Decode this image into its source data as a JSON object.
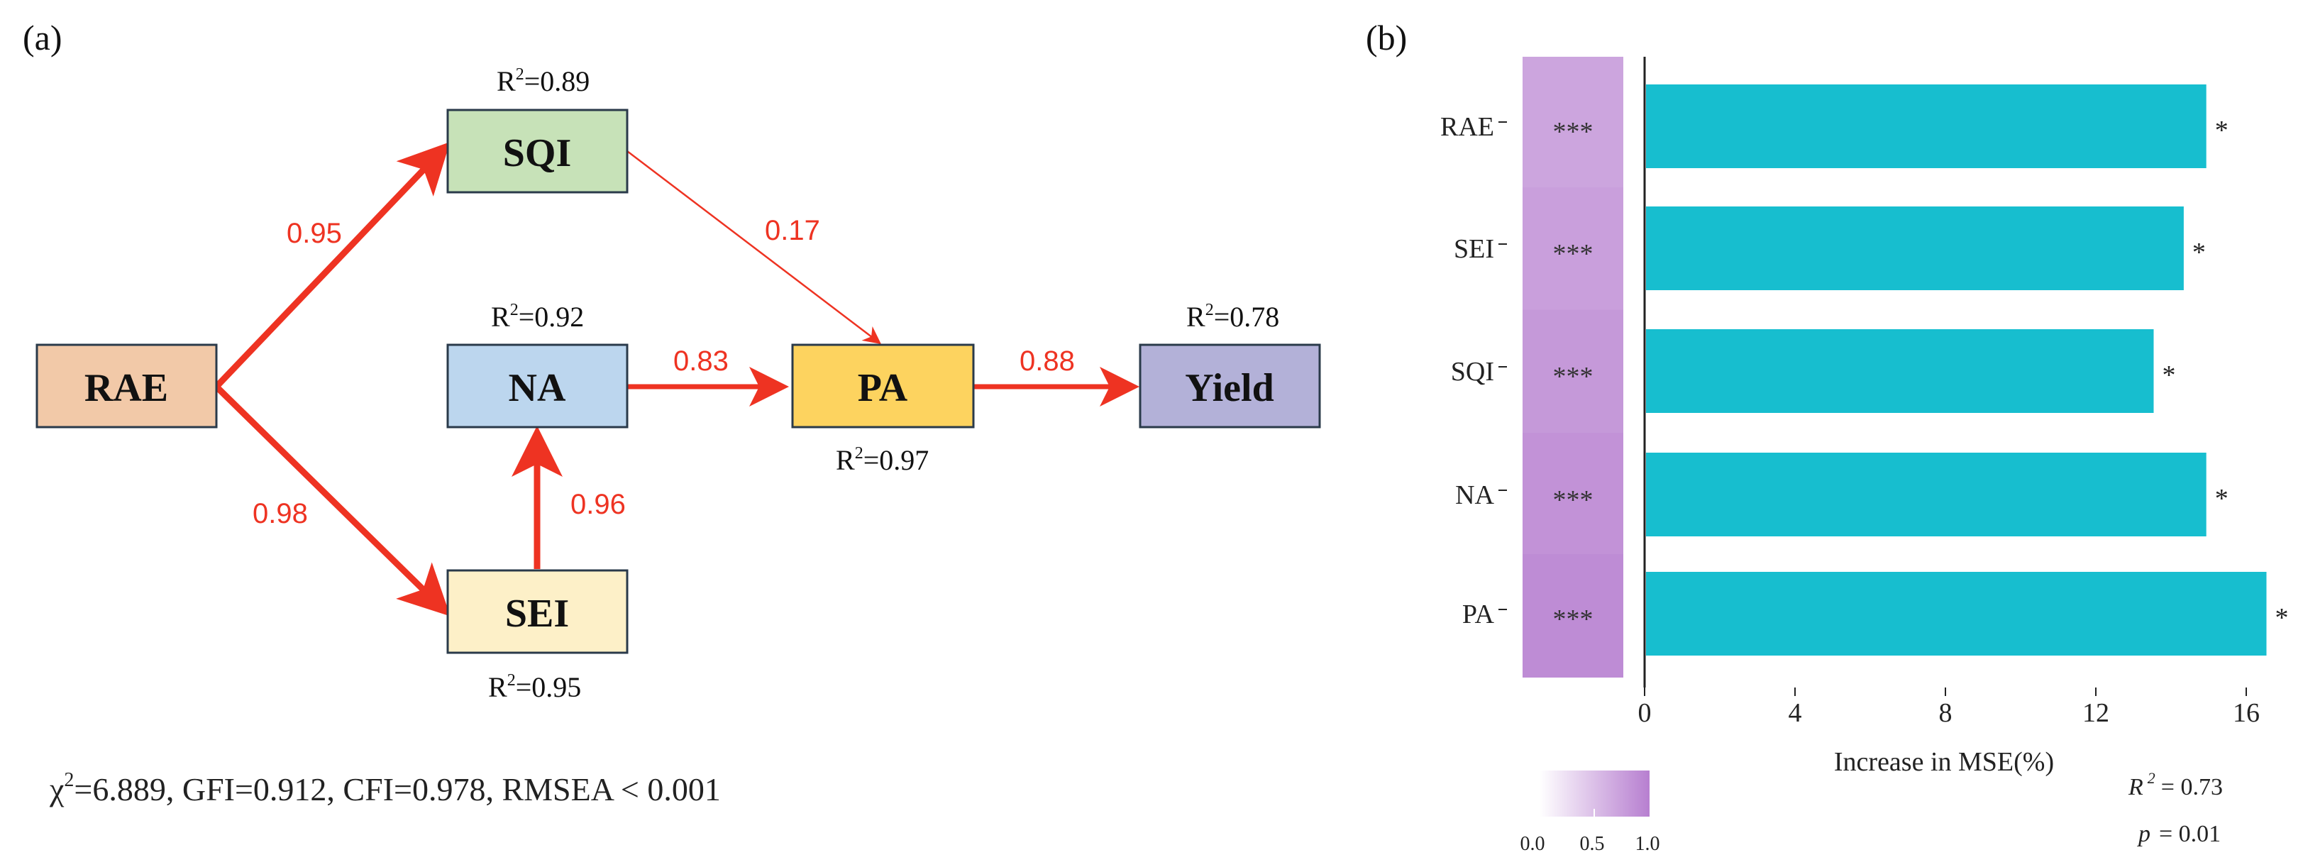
{
  "panel_a": {
    "label": "(a)",
    "nodes": [
      {
        "id": "RAE",
        "label": "RAE",
        "fill": "#f2c9a8",
        "r2_prefix": "",
        "r2_value": ""
      },
      {
        "id": "SQI",
        "label": "SQI",
        "fill": "#c7e2b8",
        "r2_prefix": "R",
        "r2_value": "=0.89"
      },
      {
        "id": "NA",
        "label": "NA",
        "fill": "#bcd6ee",
        "r2_prefix": "R",
        "r2_value": "=0.92"
      },
      {
        "id": "SEI",
        "label": "SEI",
        "fill": "#fdf0c8",
        "r2_prefix": "R",
        "r2_value": "=0.95"
      },
      {
        "id": "PA",
        "label": "PA",
        "fill": "#fdd35f",
        "r2_prefix": "R",
        "r2_value": "=0.97"
      },
      {
        "id": "Yield",
        "label": "Yield",
        "fill": "#b3b1d8",
        "r2_prefix": "R",
        "r2_value": "=0.78"
      }
    ],
    "paths": [
      {
        "from": "RAE",
        "to": "SQI",
        "coef": "0.95"
      },
      {
        "from": "RAE",
        "to": "SEI",
        "coef": "0.98"
      },
      {
        "from": "SEI",
        "to": "NA",
        "coef": "0.96"
      },
      {
        "from": "NA",
        "to": "PA",
        "coef": "0.83"
      },
      {
        "from": "SQI",
        "to": "PA",
        "coef": "0.17"
      },
      {
        "from": "PA",
        "to": "Yield",
        "coef": "0.88"
      }
    ],
    "arrow_color": "#ee3322",
    "fit": {
      "chi_symbol": "χ",
      "sup": "2",
      "rest": "=6.889, GFI=0.912, CFI=0.978, RMSEA < 0.001"
    }
  },
  "chart_data": {
    "type": "bar",
    "title": "(b)",
    "orientation": "horizontal",
    "categories": [
      "RAE",
      "SEI",
      "SQI",
      "NA",
      "PA"
    ],
    "values": [
      14.9,
      14.3,
      13.5,
      14.9,
      16.5
    ],
    "bar_significance": [
      "*",
      "*",
      "*",
      "*",
      "*"
    ],
    "heat_significance": [
      "***",
      "***",
      "***",
      "***",
      "***"
    ],
    "heat_values": [
      0.7,
      0.75,
      0.8,
      0.85,
      0.9
    ],
    "xlabel": "Increase in MSE(%)",
    "ylabel": "",
    "xlim": [
      0,
      16.7
    ],
    "xticks": [
      0,
      4,
      8,
      12,
      16
    ],
    "bar_color": "#17becf",
    "heat_color": "#b77fd0",
    "legend": {
      "ticks": [
        "0.0",
        "0.5",
        "1.0"
      ]
    },
    "stats": {
      "r2_label": "R",
      "r2_sup": "2",
      "r2_eq": "=  0.73",
      "p_label": "p",
      "p_eq": "=  0.01"
    }
  }
}
